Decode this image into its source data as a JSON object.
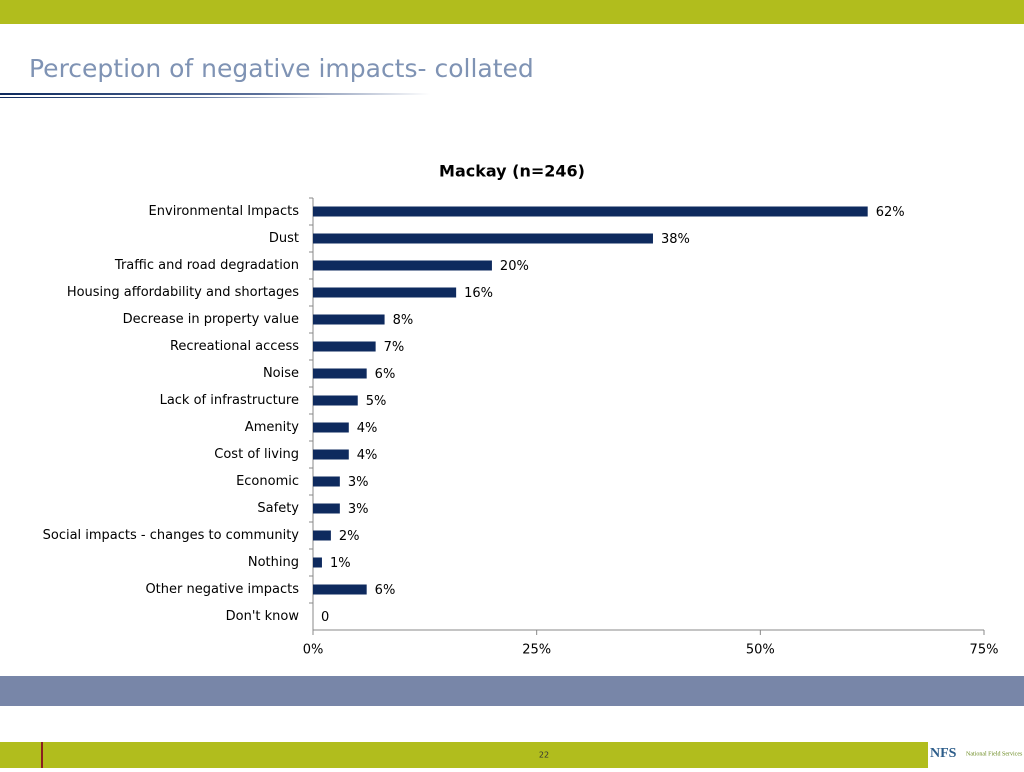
{
  "slide": {
    "title": "Perception of negative impacts- collated",
    "page_number": "22",
    "logo": "NFS",
    "logo_subtitle": "National Field Services"
  },
  "chart_data": {
    "type": "bar",
    "orientation": "horizontal",
    "title": "Mackay (n=246)",
    "categories": [
      "Environmental Impacts",
      "Dust",
      "Traffic and road degradation",
      "Housing affordability and shortages",
      "Decrease in property value",
      "Recreational access",
      "Noise",
      "Lack of infrastructure",
      "Amenity",
      "Cost of living",
      "Economic",
      "Safety",
      "Social impacts - changes to community",
      "Nothing",
      "Other negative impacts",
      "Don't know"
    ],
    "values": [
      62,
      38,
      20,
      16,
      8,
      7,
      6,
      5,
      4,
      4,
      3,
      3,
      2,
      1,
      6,
      0
    ],
    "value_labels": [
      "62%",
      "38%",
      "20%",
      "16%",
      "8%",
      "7%",
      "6%",
      "5%",
      "4%",
      "4%",
      "3%",
      "3%",
      "2%",
      "1%",
      "6%",
      "0"
    ],
    "color": "#0e2a5e",
    "xlim": [
      0,
      75
    ],
    "xticks": [
      {
        "value": 0,
        "label": "0%"
      },
      {
        "value": 25,
        "label": "25%"
      },
      {
        "value": 50,
        "label": "50%"
      },
      {
        "value": 75,
        "label": "75%"
      }
    ],
    "grid": false
  }
}
